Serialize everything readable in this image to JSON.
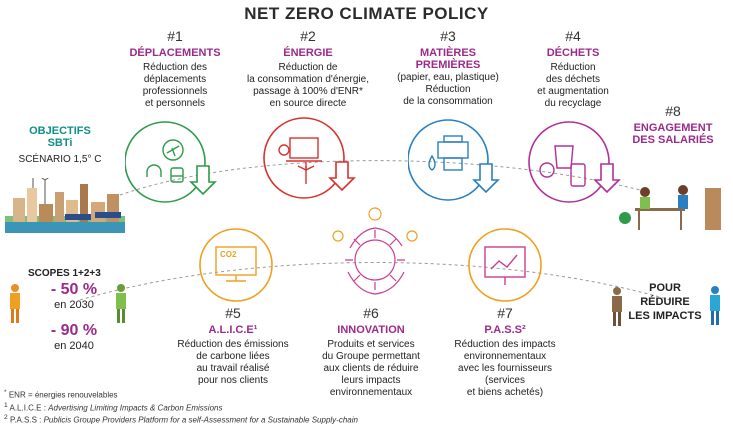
{
  "title": "NET ZERO CLIMATE POLICY",
  "objectives": {
    "heading_line1": "OBJECTIFS",
    "heading_line2": "SBTi",
    "scenario": "SCÉNARIO 1,5° C"
  },
  "scopes": {
    "label": "SCOPES 1+2+3",
    "target1_value": "- 50 %",
    "target1_year": "en 2030",
    "target2_value": "- 90 %",
    "target2_year": "en 2040"
  },
  "items": [
    {
      "num": "#1",
      "heading": [
        "DÉPLACEMENTS"
      ],
      "desc": [
        "Réduction des",
        "déplacements",
        "professionnels",
        "et personnels"
      ]
    },
    {
      "num": "#2",
      "heading": [
        "ÉNERGIE"
      ],
      "desc": [
        "Réduction de",
        "la consommation d'énergie,",
        "passage à 100% d'ENR*",
        "en source directe"
      ]
    },
    {
      "num": "#3",
      "heading": [
        "MATIÈRES",
        "PREMIÈRES"
      ],
      "desc": [
        "(papier, eau, plastique)",
        "Réduction",
        "de la consommation"
      ]
    },
    {
      "num": "#4",
      "heading": [
        "DÉCHETS"
      ],
      "desc": [
        "Réduction",
        "des déchets",
        "et augmentation",
        "du recyclage"
      ]
    },
    {
      "num": "#5",
      "heading": [
        "A.L.I.C.E¹"
      ],
      "desc": [
        "Réduction des émissions",
        "de carbone liées",
        "au travail réalisé",
        "pour nos clients"
      ]
    },
    {
      "num": "#6",
      "heading": [
        "INNOVATION"
      ],
      "desc": [
        "Produits et services",
        "du Groupe permettant",
        "aux clients de réduire",
        "leurs impacts",
        "environnementaux"
      ]
    },
    {
      "num": "#7",
      "heading": [
        "P.A.S.S²"
      ],
      "desc": [
        "Réduction des impacts",
        "environnementaux",
        "avec les fournisseurs",
        "(services",
        "et biens achetés)"
      ]
    },
    {
      "num": "#8",
      "heading": [
        "ENGAGEMENT",
        "DES SALARIÉS"
      ],
      "desc": []
    }
  ],
  "reduce": [
    "POUR",
    "RÉDUIRE",
    "LES IMPACTS"
  ],
  "co2_label": "CO2",
  "footnotes": {
    "f1_mark": "*",
    "f1_text": "ENR = énergies renouvelables",
    "f2_mark": "1",
    "f2_prefix": "A.L.I.C.E : ",
    "f2_text": "Advertising Limiting Impacts & Carbon Emissions",
    "f3_mark": "2",
    "f3_prefix": "P.A.S.S : ",
    "f3_text": "Publicis Groupe Providers Platform for a self-Assessment for a Sustainable Supply-chain"
  },
  "colors": {
    "purple": "#9c2a8b",
    "teal": "#0f8f86",
    "green": "#2d9b4a",
    "red": "#d8322f",
    "blue": "#2a7fc0",
    "magenta": "#b0309a",
    "orange": "#f0a020",
    "pink": "#cc3d8f"
  },
  "icons": [
    "dashed-path-icon",
    "plane-icon",
    "headset-icon",
    "train-icon",
    "laptop-icon",
    "wind-turbine-icon",
    "lightbulb-icon",
    "printer-icon",
    "water-drop-icon",
    "recycle-icon",
    "smartphone-icon",
    "bin-icon",
    "down-arrow-icon",
    "monitor-co2-icon",
    "sun-face-icon",
    "presentation-board-icon",
    "person-icon",
    "city-skyline-icon"
  ]
}
